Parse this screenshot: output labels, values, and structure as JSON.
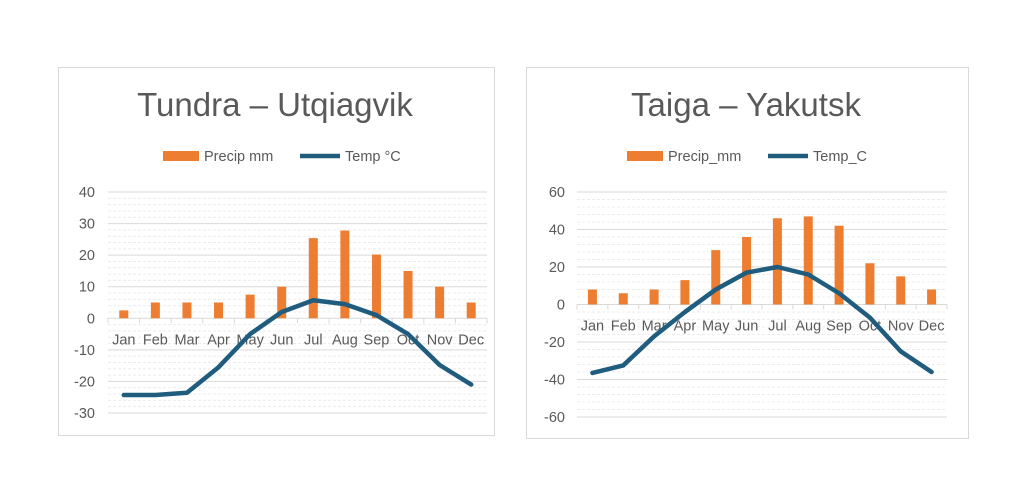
{
  "chart_data": [
    {
      "type": "bar+line",
      "title": "Tundra – Utqiagvik",
      "categories": [
        "Jan",
        "Feb",
        "Mar",
        "Apr",
        "May",
        "Jun",
        "Jul",
        "Aug",
        "Sep",
        "Oct",
        "Nov",
        "Dec"
      ],
      "series": [
        {
          "name": "Precip mm",
          "type": "bar",
          "color": "#ED7D31",
          "values": [
            2.5,
            5,
            5,
            5,
            7.5,
            10,
            25.4,
            27.8,
            20.2,
            15,
            10,
            5
          ]
        },
        {
          "name": "Temp °C",
          "type": "line",
          "color": "#1F5C7E",
          "values": [
            -24.3,
            -24.3,
            -23.6,
            -15.5,
            -5,
            2,
            5.7,
            4.5,
            1,
            -5,
            -14.8,
            -21
          ]
        }
      ],
      "ylim": [
        -30,
        40
      ],
      "yticks": [
        "40",
        "30",
        "20",
        "10",
        "0",
        "-10",
        "-20",
        "-30"
      ],
      "grid": true,
      "legend": "top"
    },
    {
      "type": "bar+line",
      "title": "Taiga – Yakutsk",
      "categories": [
        "Jan",
        "Feb",
        "Mar",
        "Apr",
        "May",
        "Jun",
        "Jul",
        "Aug",
        "Sep",
        "Oct",
        "Nov",
        "Dec"
      ],
      "series": [
        {
          "name": "Precip_mm",
          "type": "bar",
          "color": "#ED7D31",
          "values": [
            8,
            6,
            8,
            13,
            29,
            36,
            46,
            47,
            42,
            22,
            15,
            8
          ]
        },
        {
          "name": "Temp_C",
          "type": "line",
          "color": "#1F5C7E",
          "values": [
            -36.5,
            -32.5,
            -17,
            -4,
            8,
            17,
            20,
            16,
            6,
            -7,
            -25,
            -36
          ]
        }
      ],
      "ylim": [
        -60,
        60
      ],
      "yticks": [
        "60",
        "40",
        "20",
        "0",
        "-20",
        "-40",
        "-60"
      ],
      "grid": true,
      "legend": "top"
    }
  ]
}
